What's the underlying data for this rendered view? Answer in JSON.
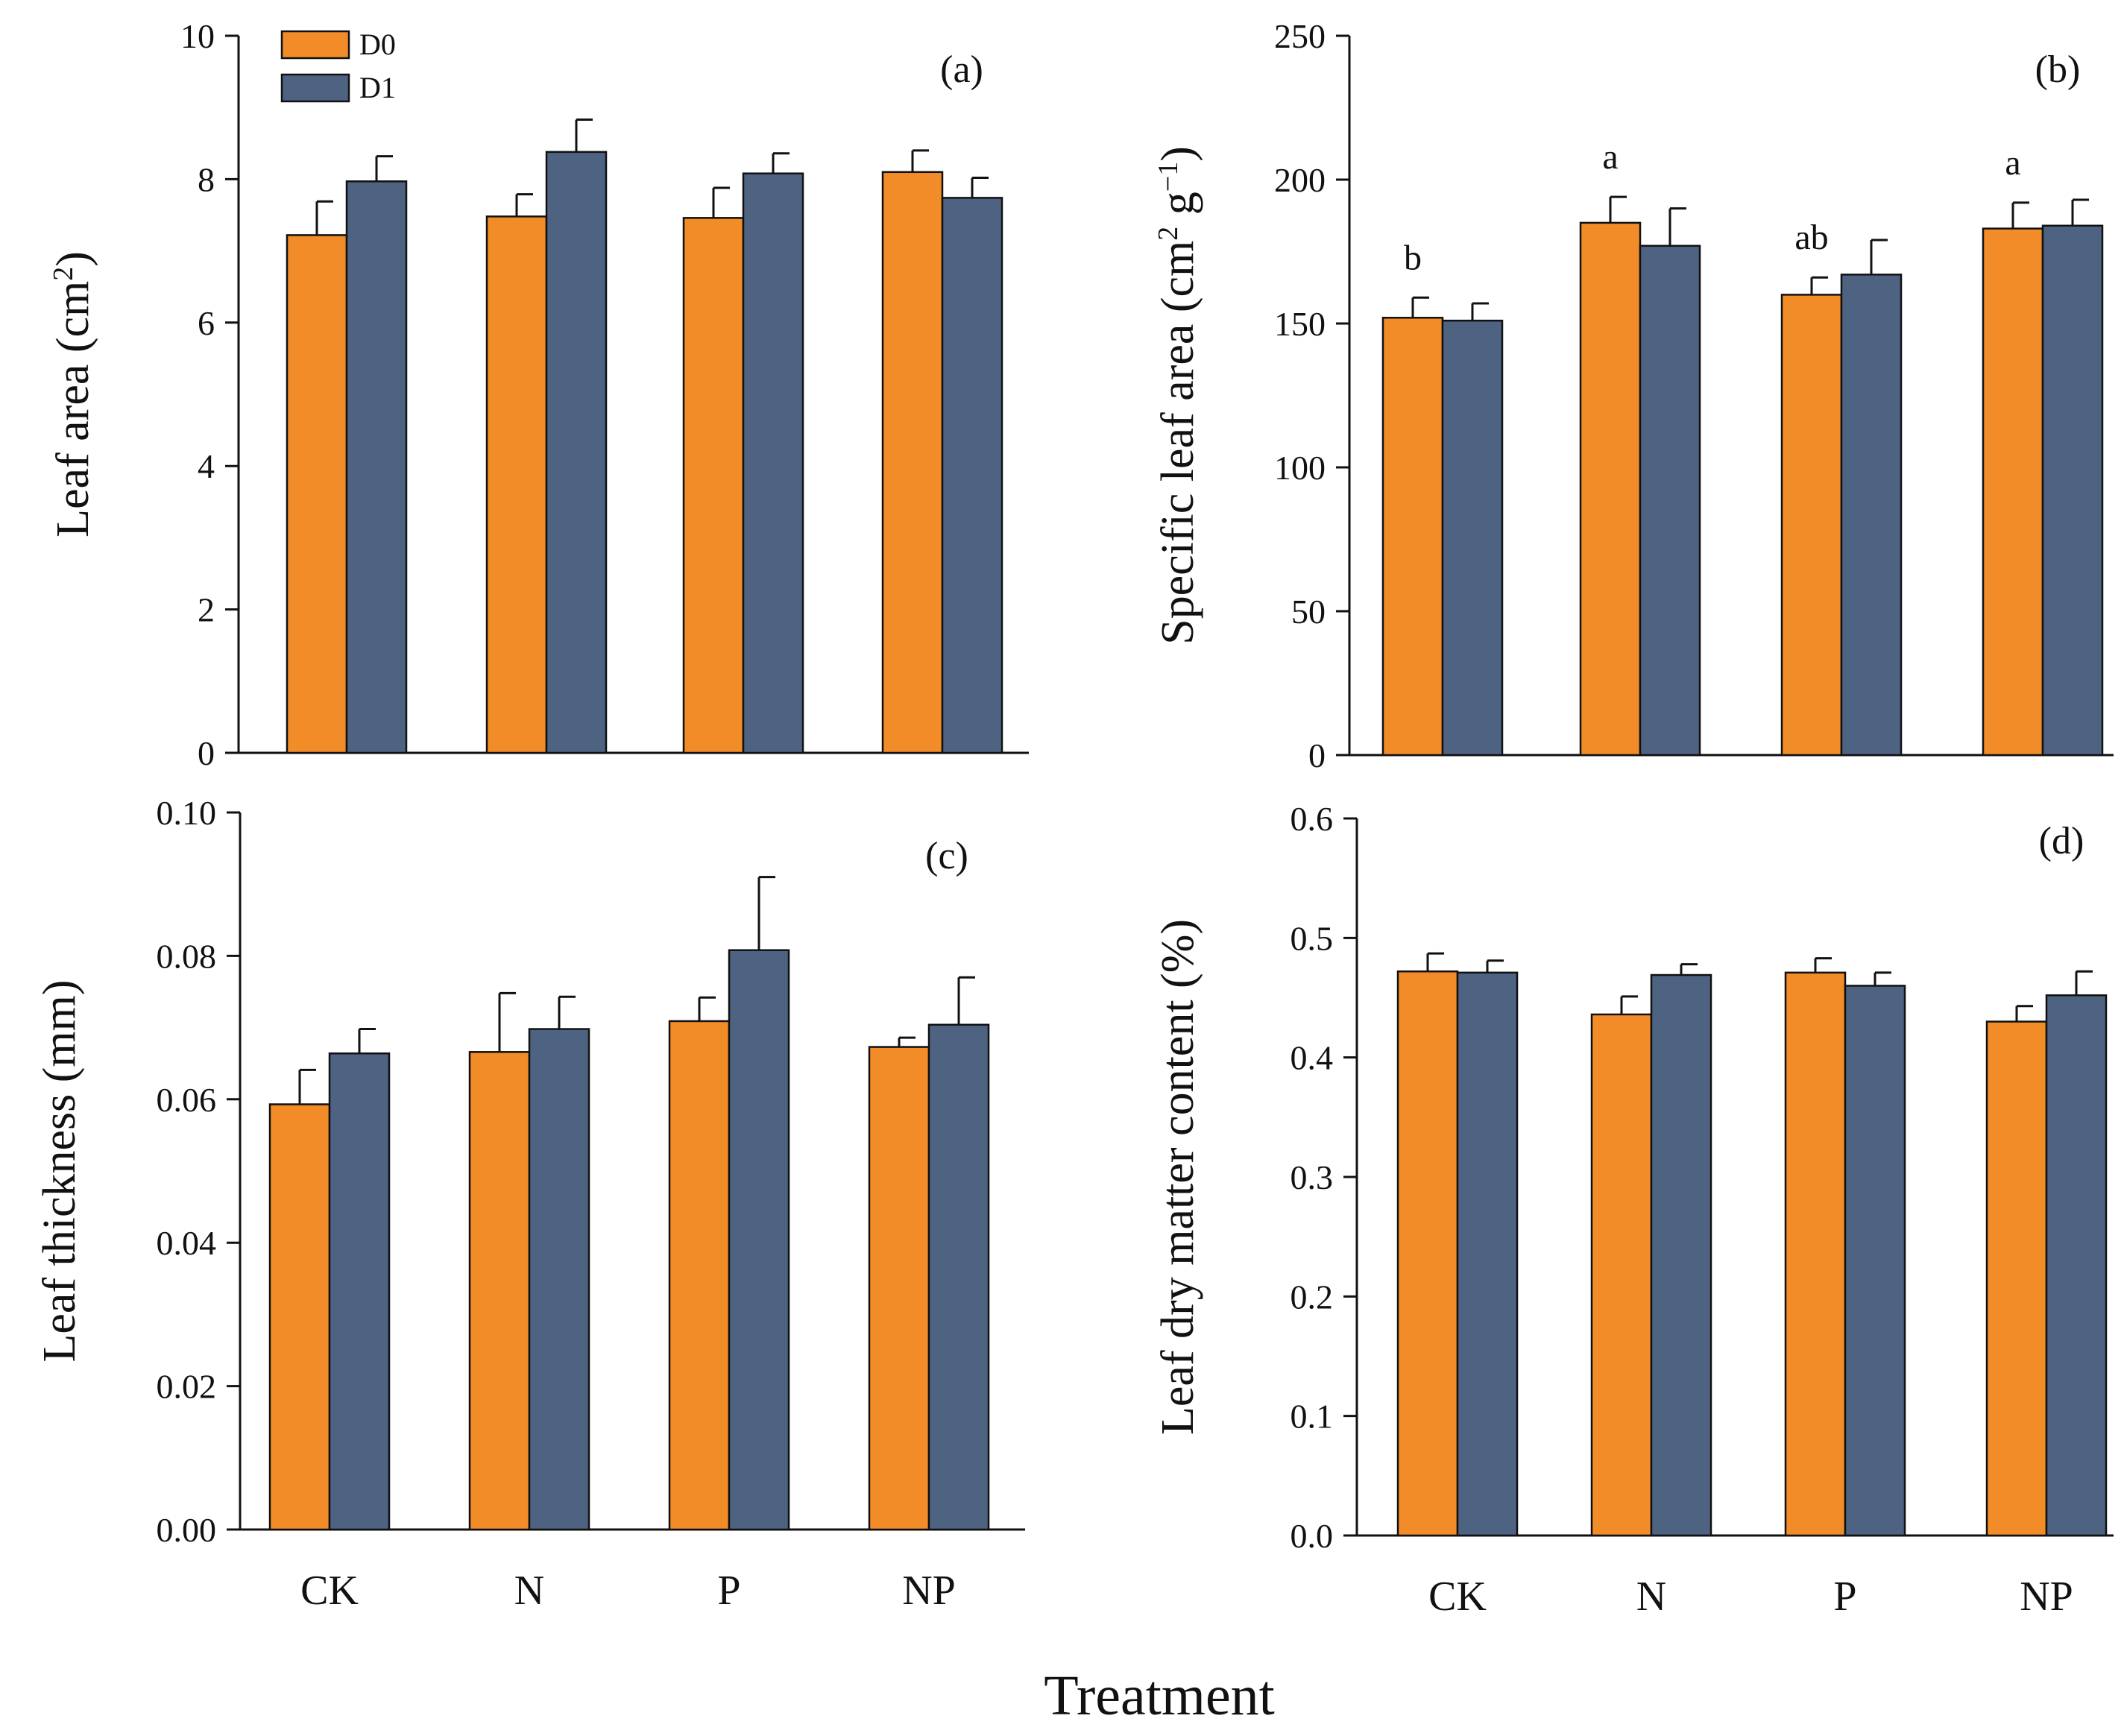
{
  "colors": {
    "D0": "#F28C28",
    "D1": "#4E6282"
  },
  "legend": {
    "entries": [
      "D0",
      "D1"
    ]
  },
  "x_title": "Treatment",
  "chart_data": [
    {
      "id": "a",
      "type": "bar",
      "panel_label": "(a)",
      "ylabel": "Leaf area (cm²)",
      "ylabel_base": "Leaf area (cm",
      "ylabel_sup": "2",
      "ylabel_end": ")",
      "ylim": [
        0,
        10
      ],
      "yticks": [
        "0",
        "2",
        "4",
        "6",
        "8",
        "10"
      ],
      "categories": [
        "CK",
        "N",
        "P",
        "NP"
      ],
      "show_xticklabels": false,
      "series": [
        {
          "name": "D0",
          "values": [
            7.22,
            7.48,
            7.46,
            8.1
          ],
          "errors": [
            0.47,
            0.31,
            0.42,
            0.3
          ]
        },
        {
          "name": "D1",
          "values": [
            7.97,
            8.38,
            8.08,
            7.74
          ],
          "errors": [
            0.35,
            0.45,
            0.28,
            0.28
          ]
        }
      ],
      "letters": []
    },
    {
      "id": "b",
      "type": "bar",
      "panel_label": "(b)",
      "ylabel": "Specific leaf area (cm² g⁻¹)",
      "ylabel_base": "Specific leaf area (cm",
      "ylabel_sup": "2",
      "ylabel_mid": " g",
      "ylabel_sup2": "−1",
      "ylabel_end": ")",
      "ylim": [
        0,
        250
      ],
      "yticks": [
        "0",
        "50",
        "100",
        "150",
        "200",
        "250"
      ],
      "categories": [
        "CK",
        "N",
        "P",
        "NP"
      ],
      "show_xticklabels": false,
      "series": [
        {
          "name": "D0",
          "values": [
            152,
            185,
            160,
            183
          ],
          "errors": [
            7,
            9,
            6,
            9
          ]
        },
        {
          "name": "D1",
          "values": [
            151,
            177,
            167,
            184
          ],
          "errors": [
            6,
            13,
            12,
            9
          ]
        }
      ],
      "letters": [
        "b",
        "a",
        "ab",
        "a"
      ]
    },
    {
      "id": "c",
      "type": "bar",
      "panel_label": "(c)",
      "ylabel": "Leaf thickness (mm)",
      "ylim": [
        0,
        0.1
      ],
      "yticks": [
        "0.00",
        "0.02",
        "0.04",
        "0.06",
        "0.08",
        "0.10"
      ],
      "categories": [
        "CK",
        "N",
        "P",
        "NP"
      ],
      "show_xticklabels": true,
      "series": [
        {
          "name": "D0",
          "values": [
            0.0593,
            0.0666,
            0.0709,
            0.0673
          ],
          "errors": [
            0.0048,
            0.0082,
            0.0033,
            0.0013
          ]
        },
        {
          "name": "D1",
          "values": [
            0.0664,
            0.0698,
            0.0808,
            0.0704
          ],
          "errors": [
            0.0034,
            0.0045,
            0.0102,
            0.0066
          ]
        }
      ],
      "letters": []
    },
    {
      "id": "d",
      "type": "bar",
      "panel_label": "(d)",
      "ylabel": "Leaf dry matter content (%)",
      "ylim": [
        0,
        0.6
      ],
      "yticks": [
        "0.0",
        "0.1",
        "0.2",
        "0.3",
        "0.4",
        "0.5",
        "0.6"
      ],
      "categories": [
        "CK",
        "N",
        "P",
        "NP"
      ],
      "show_xticklabels": true,
      "series": [
        {
          "name": "D0",
          "values": [
            0.472,
            0.436,
            0.471,
            0.43
          ],
          "errors": [
            0.015,
            0.015,
            0.012,
            0.013
          ]
        },
        {
          "name": "D1",
          "values": [
            0.471,
            0.469,
            0.46,
            0.452
          ],
          "errors": [
            0.01,
            0.009,
            0.011,
            0.02
          ]
        }
      ],
      "letters": []
    }
  ]
}
